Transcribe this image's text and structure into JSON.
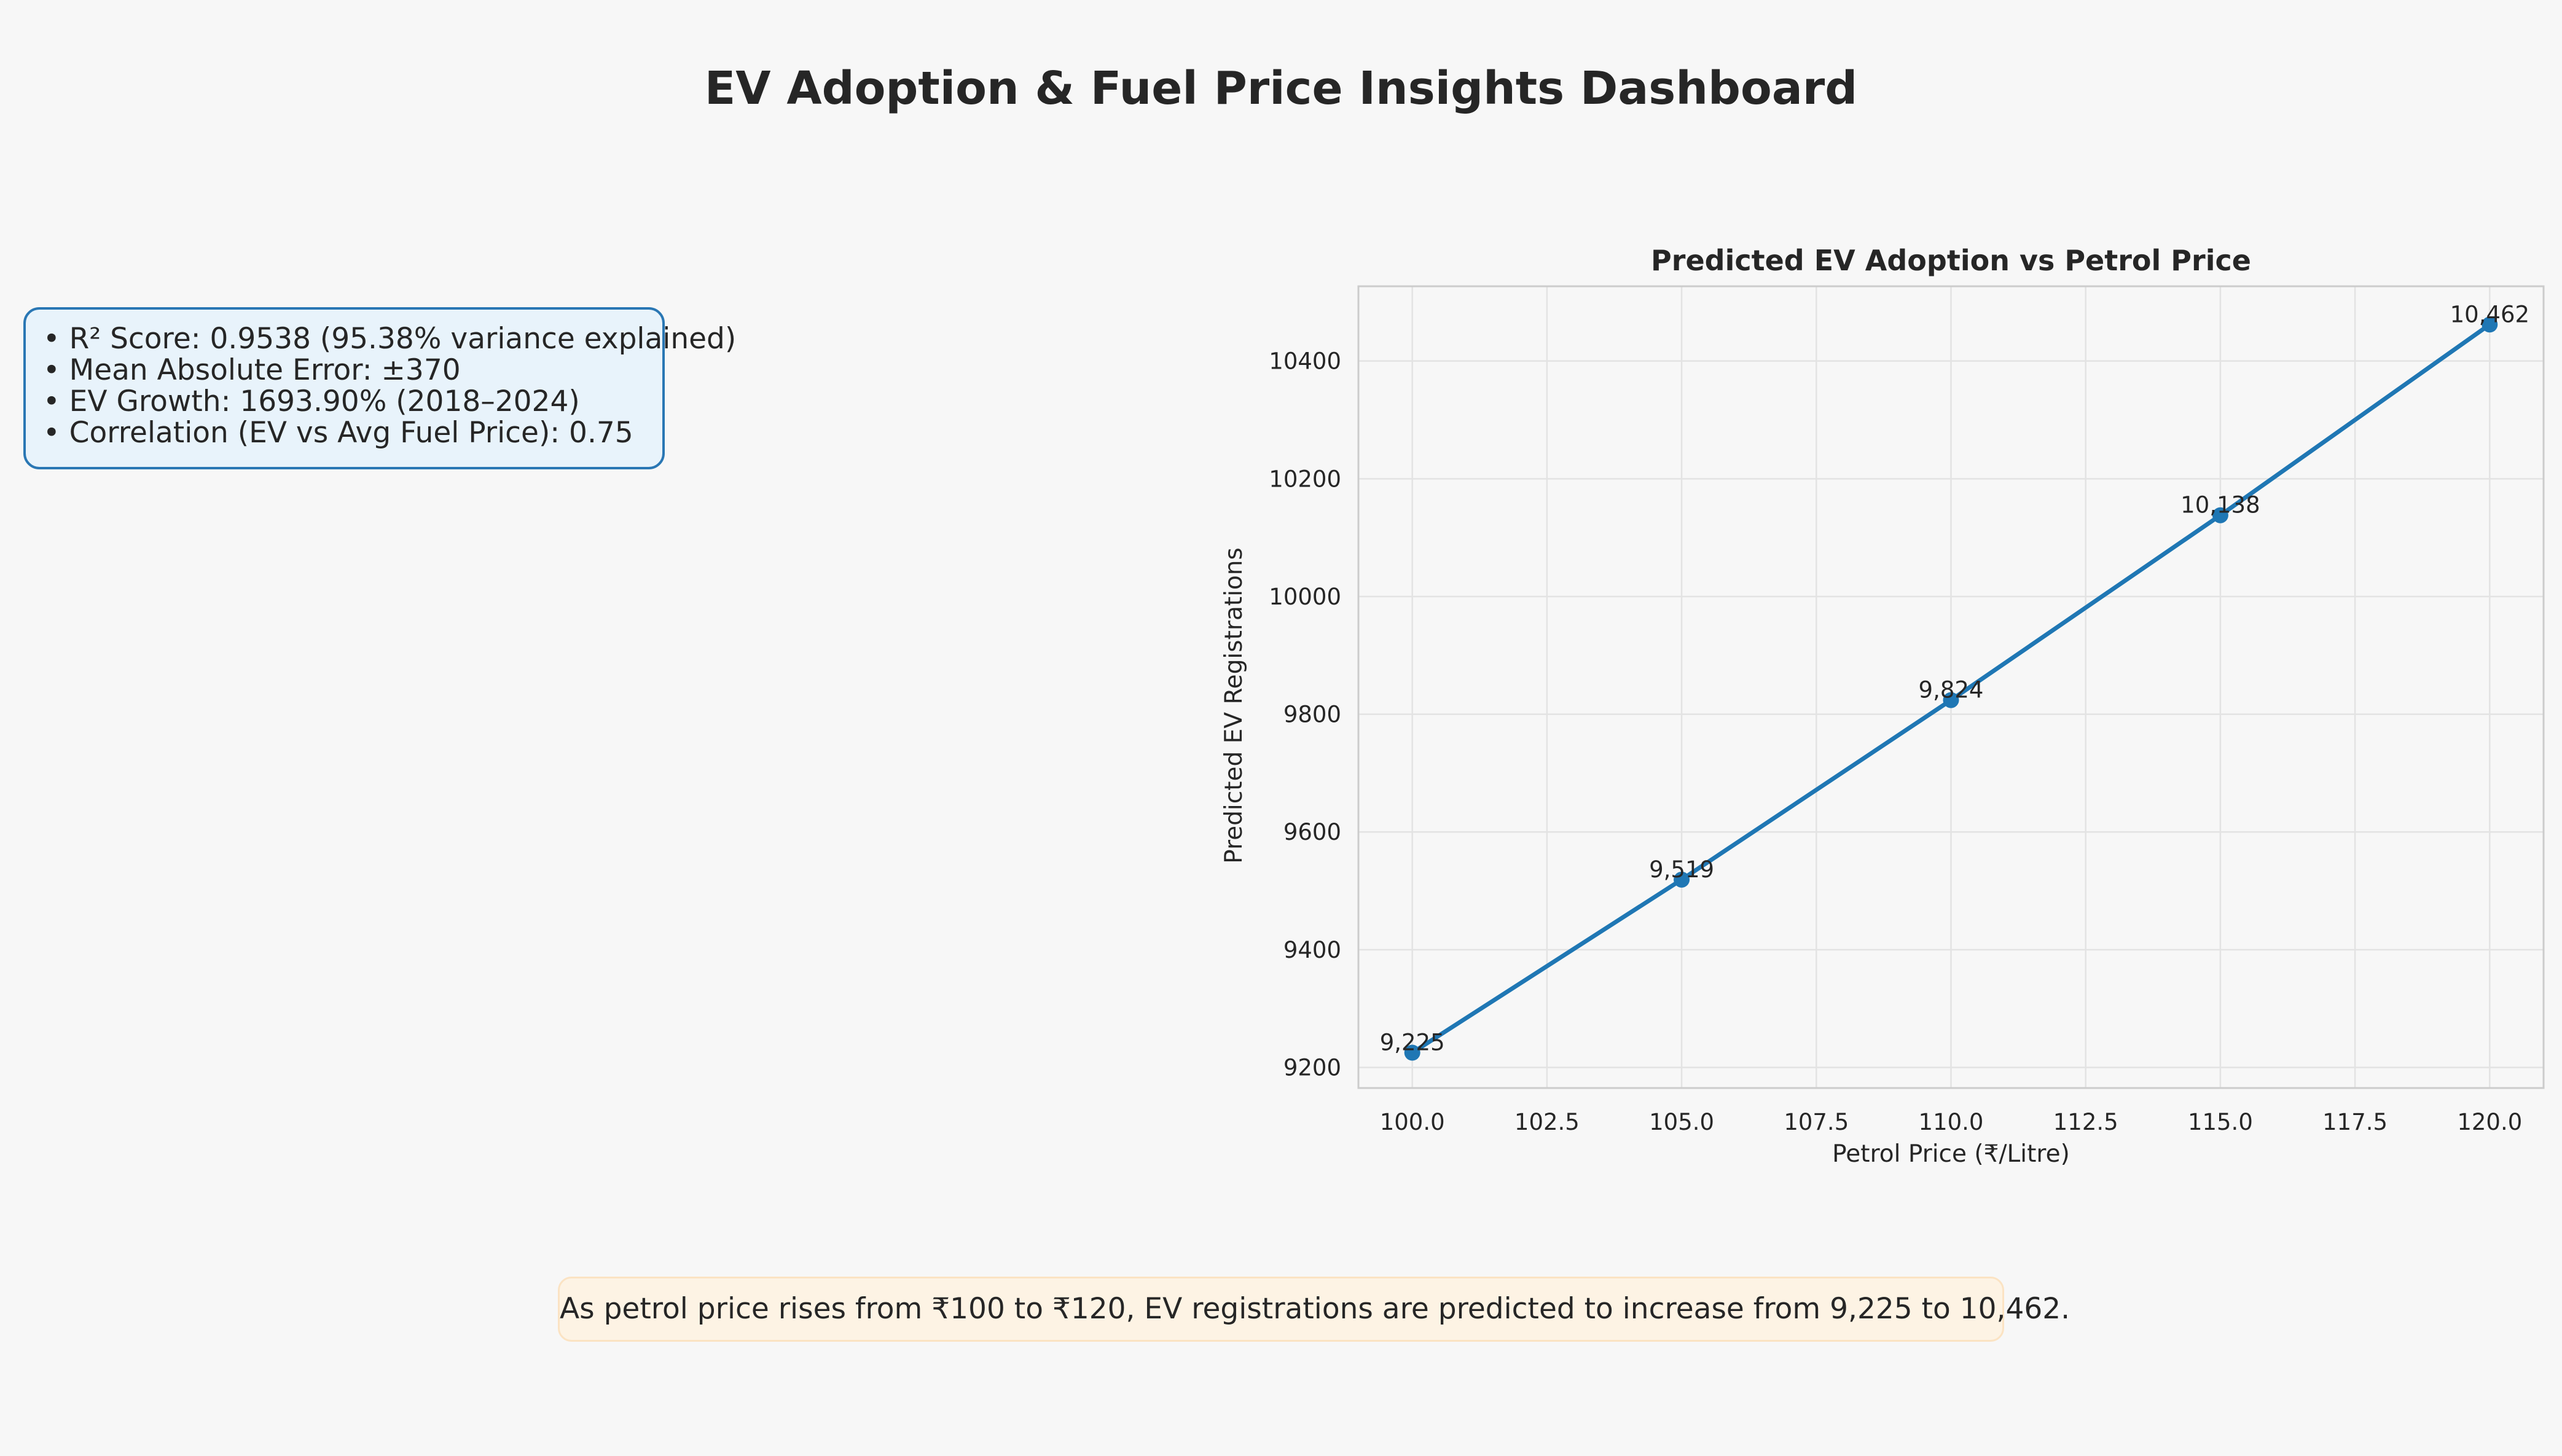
{
  "dashboard": {
    "title": "EV Adoption & Fuel Price Insights Dashboard"
  },
  "metrics": {
    "lines": [
      "• R² Score: 0.9538 (95.38% variance explained)",
      "• Mean Absolute Error: ±370",
      "• EV Growth: 1693.90% (2018–2024)",
      "• Correlation (EV vs Avg Fuel Price): 0.75"
    ],
    "border_color": "#2a77b4",
    "background_color": "#e8f3fb"
  },
  "insight": {
    "text": "As petrol price rises from ₹100 to ₹120, EV registrations are predicted to increase from 9,225 to 10,462.",
    "background_color": "#fdf3e4"
  },
  "chart_data": {
    "type": "line",
    "title": "Predicted EV Adoption vs Petrol Price",
    "xlabel": "Petrol Price (₹/Litre)",
    "ylabel": "Predicted EV Registrations",
    "x": [
      100,
      105,
      110,
      115,
      120
    ],
    "series": [
      {
        "values": [
          9225,
          9519,
          9824,
          10138,
          10462
        ],
        "color": "#1f77b4"
      }
    ],
    "data_labels": [
      "9,225",
      "9,519",
      "9,824",
      "10,138",
      "10,462"
    ],
    "xlim": [
      99,
      121
    ],
    "ylim": [
      9165,
      10527
    ],
    "x_ticks": [
      100.0,
      102.5,
      105.0,
      107.5,
      110.0,
      112.5,
      115.0,
      117.5,
      120.0
    ],
    "x_tick_labels": [
      "100.0",
      "102.5",
      "105.0",
      "107.5",
      "110.0",
      "112.5",
      "115.0",
      "117.5",
      "120.0"
    ],
    "y_ticks": [
      9200,
      9400,
      9600,
      9800,
      10000,
      10200,
      10400
    ],
    "y_tick_labels": [
      "9200",
      "9400",
      "9600",
      "9800",
      "10000",
      "10200",
      "10400"
    ],
    "grid": true,
    "legend": "none"
  }
}
